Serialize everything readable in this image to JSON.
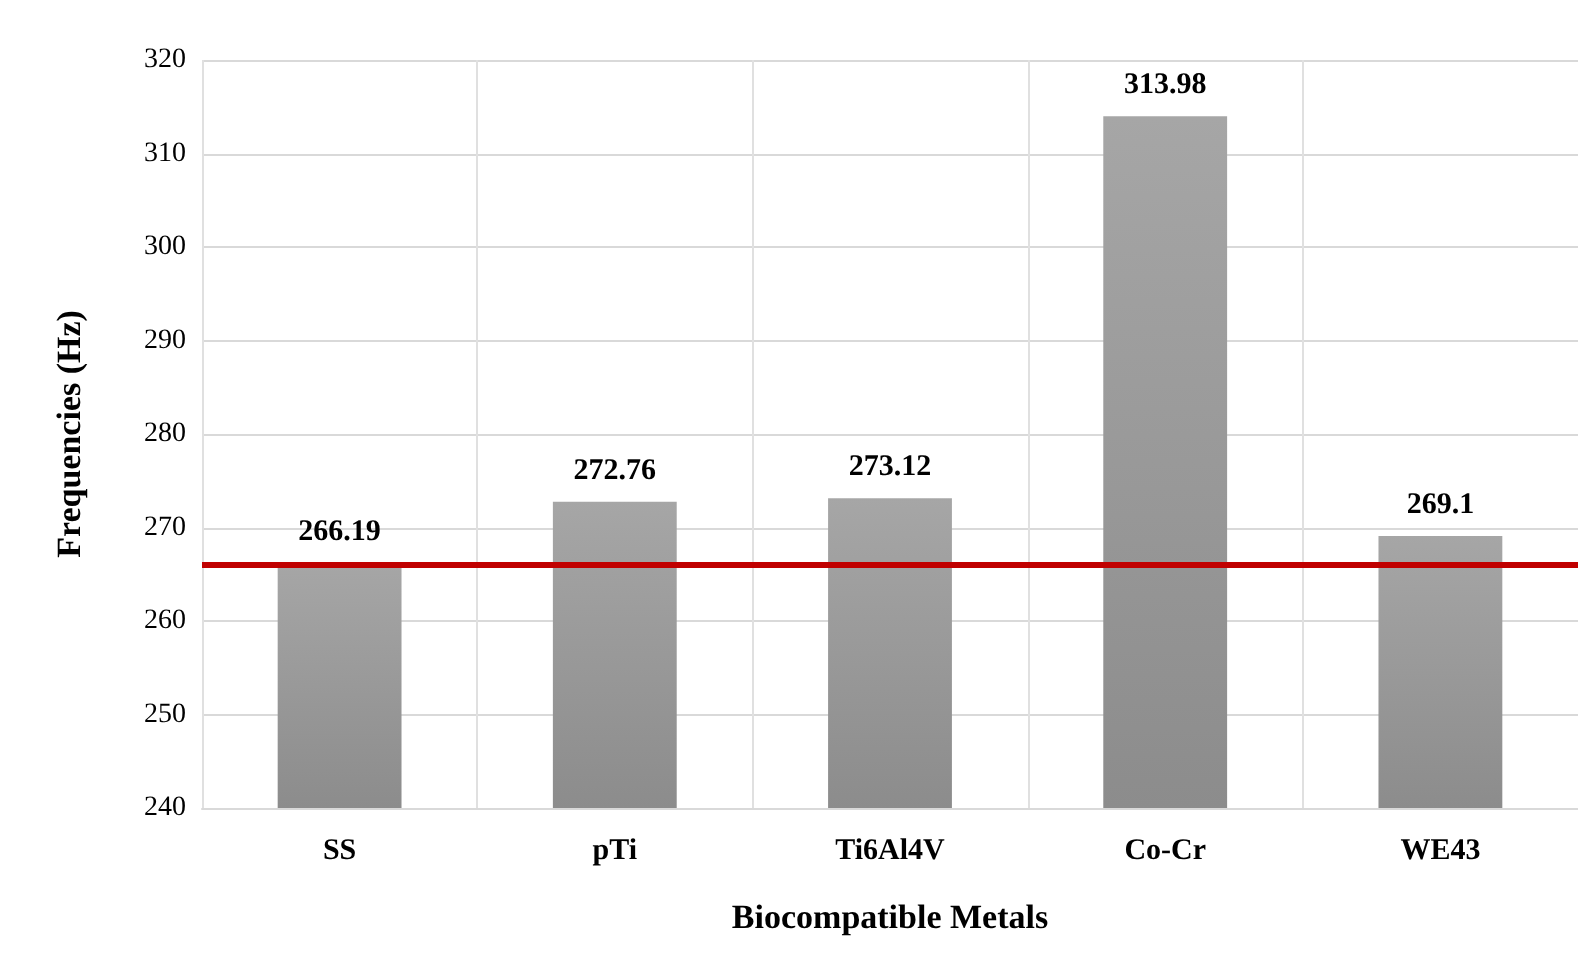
{
  "chart_data": {
    "type": "bar",
    "xlabel": "Biocompatible Metals",
    "ylabel": "Frequencies (Hz)",
    "categories": [
      "SS",
      "pTi",
      "Ti6Al4V",
      "Co-Cr",
      "WE43"
    ],
    "values": [
      266.19,
      272.76,
      273.12,
      313.98,
      269.1
    ],
    "color": "#a6a6a6",
    "data_labels": true,
    "ylim": [
      240,
      320
    ],
    "yticks": [
      240,
      250,
      260,
      270,
      280,
      290,
      300,
      310,
      320
    ],
    "grid": true,
    "ref_lines": [
      {
        "axis": "y",
        "value": 266,
        "color": "#c00000"
      }
    ]
  }
}
